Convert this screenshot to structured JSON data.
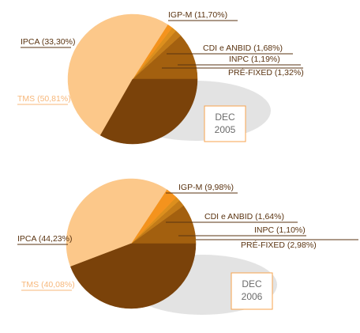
{
  "colors": {
    "IPCA": "#7a420a",
    "IGP-M": "#a3600f",
    "CDI e ANBID": "#c37b18",
    "INPC": "#dc8f1d",
    "PRÉ-FIXED": "#f4931d",
    "TMS": "#fcc88a",
    "shadow": "#e3e3e3",
    "label_dark": "#5a3310",
    "label_light": "#f7b77a",
    "box_border": "#f7a34d"
  },
  "chart_data": [
    {
      "type": "pie",
      "title": "",
      "box_label": [
        "DEC",
        "2005"
      ],
      "slices": [
        {
          "key": "IGP-M",
          "label": "IGP-M (11,70%)",
          "value": 11.7
        },
        {
          "key": "CDI e ANBID",
          "label": "CDI e ANBID (1,68%)",
          "value": 1.68
        },
        {
          "key": "INPC",
          "label": "INPC (1,19%)",
          "value": 1.19
        },
        {
          "key": "PRÉ-FIXED",
          "label": "PRÉ-FIXED (1,32%)",
          "value": 1.32
        },
        {
          "key": "TMS",
          "label": "TMS (50,81%)",
          "value": 50.81
        },
        {
          "key": "IPCA",
          "label": "IPCA (33,30%)",
          "value": 33.3
        }
      ]
    },
    {
      "type": "pie",
      "title": "",
      "box_label": [
        "DEC",
        "2006"
      ],
      "slices": [
        {
          "key": "IGP-M",
          "label": "IGP-M (9,98%)",
          "value": 9.98
        },
        {
          "key": "CDI e ANBID",
          "label": "CDI e ANBID (1,64%)",
          "value": 1.64
        },
        {
          "key": "INPC",
          "label": "INPC (1,10%)",
          "value": 1.1
        },
        {
          "key": "PRÉ-FIXED",
          "label": "PRÉ-FIXED (2,98%)",
          "value": 2.98
        },
        {
          "key": "TMS",
          "label": "TMS (40,08%)",
          "value": 40.08
        },
        {
          "key": "IPCA",
          "label": "IPCA (44,23%)",
          "value": 44.23
        }
      ]
    }
  ]
}
